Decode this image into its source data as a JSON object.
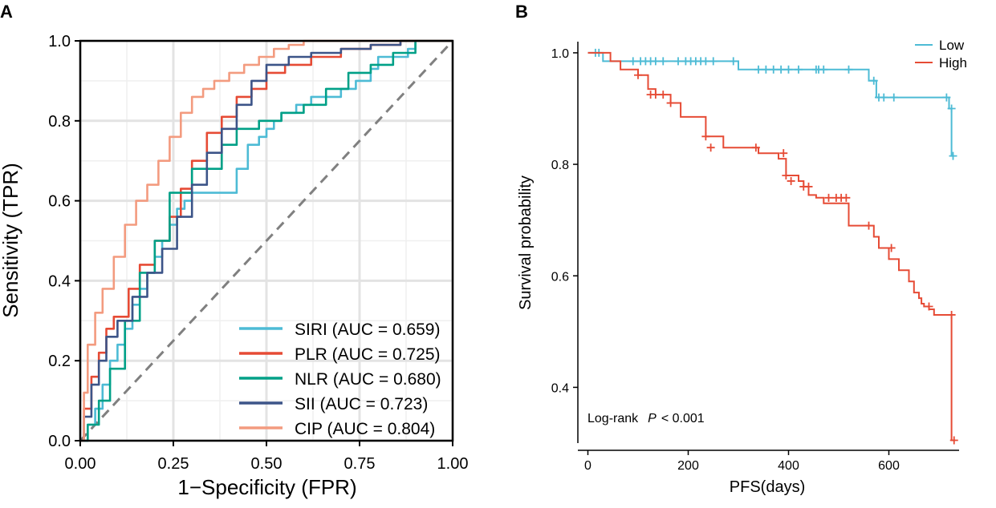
{
  "chart_data": [
    {
      "type": "line",
      "panel_label": "A",
      "xlabel": "1−Specificity (FPR)",
      "ylabel": "Sensitivity (TPR)",
      "xlim": [
        0,
        1
      ],
      "ylim": [
        0,
        1
      ],
      "xticks": [
        "0.00",
        "0.25",
        "0.50",
        "0.75",
        "1.00"
      ],
      "yticks": [
        "0.0",
        "0.2",
        "0.4",
        "0.6",
        "0.8",
        "1.0"
      ],
      "grid": true,
      "legend_position": "bottom-right",
      "diagonal": {
        "x": [
          0,
          1
        ],
        "y": [
          0,
          1
        ],
        "color": "#808080",
        "style": "dashed"
      },
      "series": [
        {
          "name": "SIRI",
          "legend": "SIRI (AUC = 0.659)",
          "auc": 0.659,
          "color": "#4DBBD5",
          "x": [
            0,
            0.02,
            0.02,
            0.04,
            0.04,
            0.06,
            0.06,
            0.08,
            0.08,
            0.1,
            0.1,
            0.12,
            0.12,
            0.14,
            0.14,
            0.16,
            0.16,
            0.18,
            0.18,
            0.2,
            0.2,
            0.22,
            0.22,
            0.24,
            0.24,
            0.26,
            0.26,
            0.28,
            0.28,
            0.3,
            0.3,
            0.32,
            0.32,
            0.42,
            0.42,
            0.45,
            0.45,
            0.48,
            0.48,
            0.5,
            0.5,
            0.52,
            0.52,
            0.54,
            0.54,
            0.58,
            0.58,
            0.62,
            0.62,
            0.7,
            0.7,
            0.74,
            0.74,
            0.78,
            0.78,
            0.8,
            0.8,
            0.88,
            0.88,
            0.9,
            0.9,
            0.94,
            0.94,
            1
          ],
          "y": [
            0,
            0,
            0.04,
            0.04,
            0.08,
            0.08,
            0.14,
            0.14,
            0.2,
            0.2,
            0.24,
            0.24,
            0.28,
            0.28,
            0.34,
            0.34,
            0.38,
            0.38,
            0.42,
            0.42,
            0.46,
            0.46,
            0.5,
            0.5,
            0.54,
            0.54,
            0.58,
            0.58,
            0.6,
            0.6,
            0.62,
            0.62,
            0.62,
            0.62,
            0.68,
            0.68,
            0.74,
            0.74,
            0.76,
            0.76,
            0.78,
            0.78,
            0.8,
            0.8,
            0.82,
            0.82,
            0.84,
            0.84,
            0.86,
            0.86,
            0.88,
            0.88,
            0.9,
            0.9,
            0.93,
            0.93,
            0.96,
            0.96,
            0.98,
            0.98,
            1.0,
            1.0,
            1.0,
            1.0
          ]
        },
        {
          "name": "PLR",
          "legend": "PLR (AUC = 0.725)",
          "auc": 0.725,
          "color": "#E64B35",
          "x": [
            0,
            0.01,
            0.01,
            0.03,
            0.03,
            0.05,
            0.05,
            0.07,
            0.07,
            0.09,
            0.09,
            0.13,
            0.13,
            0.16,
            0.16,
            0.2,
            0.2,
            0.24,
            0.24,
            0.27,
            0.27,
            0.3,
            0.3,
            0.34,
            0.34,
            0.38,
            0.38,
            0.42,
            0.42,
            0.46,
            0.46,
            0.5,
            0.5,
            0.55,
            0.55,
            0.62,
            0.62,
            0.7,
            0.7,
            0.78,
            0.78,
            0.86,
            0.86,
            0.94,
            0.94,
            1
          ],
          "y": [
            0,
            0,
            0.08,
            0.08,
            0.16,
            0.16,
            0.22,
            0.22,
            0.28,
            0.28,
            0.31,
            0.31,
            0.38,
            0.38,
            0.44,
            0.44,
            0.5,
            0.5,
            0.56,
            0.56,
            0.63,
            0.63,
            0.7,
            0.7,
            0.77,
            0.77,
            0.81,
            0.81,
            0.86,
            0.86,
            0.88,
            0.88,
            0.92,
            0.92,
            0.94,
            0.94,
            0.96,
            0.96,
            0.98,
            0.98,
            0.99,
            0.99,
            1.0,
            1.0,
            1.0,
            1.0
          ]
        },
        {
          "name": "NLR",
          "legend": "NLR (AUC = 0.680)",
          "auc": 0.68,
          "color": "#00A087",
          "x": [
            0,
            0.02,
            0.02,
            0.05,
            0.05,
            0.08,
            0.08,
            0.12,
            0.12,
            0.16,
            0.16,
            0.2,
            0.2,
            0.24,
            0.24,
            0.3,
            0.3,
            0.38,
            0.38,
            0.42,
            0.42,
            0.48,
            0.48,
            0.54,
            0.54,
            0.6,
            0.6,
            0.66,
            0.66,
            0.72,
            0.72,
            0.78,
            0.78,
            0.84,
            0.84,
            0.9,
            0.9,
            1
          ],
          "y": [
            0,
            0,
            0.04,
            0.04,
            0.1,
            0.1,
            0.18,
            0.18,
            0.3,
            0.3,
            0.42,
            0.42,
            0.5,
            0.5,
            0.62,
            0.62,
            0.68,
            0.68,
            0.74,
            0.74,
            0.78,
            0.78,
            0.8,
            0.8,
            0.82,
            0.82,
            0.84,
            0.84,
            0.88,
            0.88,
            0.92,
            0.92,
            0.94,
            0.94,
            0.97,
            0.97,
            1.0,
            1.0
          ]
        },
        {
          "name": "SII",
          "legend": "SII (AUC = 0.723)",
          "auc": 0.723,
          "color": "#3C5488",
          "x": [
            0,
            0.01,
            0.01,
            0.03,
            0.03,
            0.05,
            0.05,
            0.07,
            0.07,
            0.1,
            0.1,
            0.14,
            0.14,
            0.18,
            0.18,
            0.22,
            0.22,
            0.26,
            0.26,
            0.3,
            0.3,
            0.34,
            0.34,
            0.38,
            0.38,
            0.42,
            0.42,
            0.46,
            0.46,
            0.5,
            0.5,
            0.56,
            0.56,
            0.62,
            0.62,
            0.7,
            0.7,
            0.78,
            0.78,
            0.86,
            0.86,
            0.92,
            0.92,
            1
          ],
          "y": [
            0,
            0,
            0.06,
            0.06,
            0.14,
            0.14,
            0.2,
            0.2,
            0.26,
            0.26,
            0.3,
            0.3,
            0.36,
            0.36,
            0.42,
            0.42,
            0.48,
            0.48,
            0.56,
            0.56,
            0.64,
            0.64,
            0.72,
            0.72,
            0.78,
            0.78,
            0.84,
            0.84,
            0.9,
            0.9,
            0.94,
            0.94,
            0.96,
            0.96,
            0.97,
            0.97,
            0.98,
            0.98,
            0.99,
            0.99,
            1.0,
            1.0,
            1.0,
            1.0
          ]
        },
        {
          "name": "CIP",
          "legend": "CIP (AUC = 0.804)",
          "auc": 0.804,
          "color": "#F39B7F",
          "x": [
            0,
            0.01,
            0.01,
            0.02,
            0.02,
            0.04,
            0.04,
            0.06,
            0.06,
            0.09,
            0.09,
            0.12,
            0.12,
            0.15,
            0.15,
            0.18,
            0.18,
            0.21,
            0.21,
            0.24,
            0.24,
            0.27,
            0.27,
            0.3,
            0.3,
            0.33,
            0.33,
            0.36,
            0.36,
            0.4,
            0.4,
            0.44,
            0.44,
            0.48,
            0.48,
            0.52,
            0.52,
            0.56,
            0.56,
            0.6,
            0.6,
            1
          ],
          "y": [
            0,
            0,
            0.12,
            0.12,
            0.24,
            0.24,
            0.32,
            0.32,
            0.38,
            0.38,
            0.46,
            0.46,
            0.54,
            0.54,
            0.6,
            0.6,
            0.64,
            0.64,
            0.7,
            0.7,
            0.76,
            0.76,
            0.82,
            0.82,
            0.86,
            0.86,
            0.88,
            0.88,
            0.9,
            0.9,
            0.92,
            0.92,
            0.94,
            0.94,
            0.96,
            0.96,
            0.98,
            0.98,
            0.99,
            0.99,
            1.0,
            1.0
          ]
        }
      ]
    },
    {
      "type": "line",
      "panel_label": "B",
      "subtype": "kaplan-meier",
      "xlabel": "PFS(days)",
      "ylabel": "Survival probability",
      "xlim": [
        -20,
        740
      ],
      "ylim": [
        0.3,
        1.02
      ],
      "xticks": [
        "0",
        "200",
        "400",
        "600"
      ],
      "yticks": [
        "0.4",
        "0.6",
        "0.8",
        "1.0"
      ],
      "grid": false,
      "legend_position": "top-right",
      "annotation": {
        "label": "Log-rank",
        "p_label": "P",
        "p_value": "< 0.001"
      },
      "series": [
        {
          "name": "Low",
          "color": "#4DBBD5",
          "x": [
            0,
            30,
            30,
            300,
            300,
            560,
            560,
            575,
            575,
            720,
            720,
            725,
            725,
            730
          ],
          "y": [
            1.0,
            1.0,
            0.985,
            0.985,
            0.97,
            0.97,
            0.95,
            0.95,
            0.92,
            0.92,
            0.9,
            0.9,
            0.815,
            0.815
          ],
          "censor_x": [
            15,
            22,
            90,
            105,
            115,
            125,
            135,
            150,
            180,
            195,
            205,
            215,
            225,
            235,
            250,
            290,
            340,
            355,
            370,
            385,
            400,
            420,
            455,
            460,
            470,
            520,
            570,
            580,
            590,
            610,
            715,
            725,
            728
          ],
          "censor_y": [
            1.0,
            1.0,
            0.985,
            0.985,
            0.985,
            0.985,
            0.985,
            0.985,
            0.985,
            0.985,
            0.985,
            0.985,
            0.985,
            0.985,
            0.985,
            0.985,
            0.97,
            0.97,
            0.97,
            0.97,
            0.97,
            0.97,
            0.97,
            0.97,
            0.97,
            0.97,
            0.95,
            0.92,
            0.92,
            0.92,
            0.92,
            0.9,
            0.815
          ]
        },
        {
          "name": "High",
          "color": "#E64B35",
          "x": [
            0,
            45,
            45,
            65,
            65,
            100,
            100,
            120,
            120,
            135,
            135,
            165,
            165,
            185,
            185,
            235,
            235,
            270,
            270,
            340,
            340,
            380,
            380,
            395,
            395,
            420,
            420,
            430,
            430,
            440,
            440,
            455,
            455,
            470,
            470,
            520,
            520,
            550,
            550,
            570,
            570,
            580,
            580,
            600,
            600,
            620,
            620,
            640,
            640,
            650,
            650,
            660,
            660,
            665,
            665,
            670,
            670,
            680,
            680,
            690,
            690,
            725,
            725,
            732
          ],
          "y": [
            1.0,
            1.0,
            0.985,
            0.985,
            0.97,
            0.97,
            0.96,
            0.96,
            0.935,
            0.935,
            0.925,
            0.925,
            0.91,
            0.91,
            0.885,
            0.885,
            0.85,
            0.85,
            0.83,
            0.83,
            0.82,
            0.82,
            0.81,
            0.81,
            0.78,
            0.78,
            0.77,
            0.77,
            0.76,
            0.76,
            0.745,
            0.745,
            0.74,
            0.74,
            0.73,
            0.73,
            0.69,
            0.69,
            0.69,
            0.69,
            0.67,
            0.67,
            0.65,
            0.65,
            0.63,
            0.63,
            0.61,
            0.61,
            0.59,
            0.59,
            0.57,
            0.57,
            0.56,
            0.56,
            0.55,
            0.55,
            0.545,
            0.545,
            0.54,
            0.54,
            0.53,
            0.53,
            0.305,
            0.305
          ],
          "censor_x": [
            100,
            125,
            135,
            150,
            165,
            235,
            245,
            335,
            390,
            395,
            405,
            430,
            440,
            480,
            495,
            505,
            515,
            560,
            605,
            680,
            725,
            730
          ],
          "censor_y": [
            0.96,
            0.925,
            0.925,
            0.925,
            0.91,
            0.85,
            0.83,
            0.83,
            0.82,
            0.78,
            0.77,
            0.76,
            0.76,
            0.74,
            0.74,
            0.74,
            0.74,
            0.69,
            0.65,
            0.545,
            0.53,
            0.305
          ]
        }
      ]
    }
  ]
}
